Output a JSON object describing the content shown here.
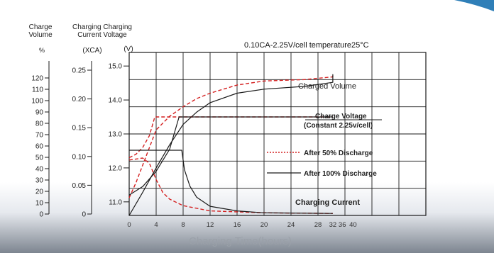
{
  "header": {
    "charge_volume": "Charge\nVolume",
    "charging_current_voltage": "Charging Charging\nCurrent Voltage",
    "unit_percent": "%",
    "unit_xca": "(XCA)",
    "unit_v": "(V)"
  },
  "chart_data": {
    "type": "line",
    "title": "0.10CA-2.25V/cell temperature25°C",
    "xlabel": "Charging Time(hours)",
    "x_ticks": [
      "0",
      "4",
      "8",
      "12",
      "16",
      "20",
      "24",
      "28",
      "32",
      "36",
      "40"
    ],
    "axes": {
      "volume_percent": {
        "ticks": [
          0,
          10,
          20,
          30,
          40,
          50,
          60,
          70,
          80,
          90,
          100,
          110,
          120
        ]
      },
      "current_xca": {
        "ticks": [
          "0",
          "0.05",
          "0.10",
          "0.15",
          "0.20",
          "0.25"
        ]
      },
      "voltage_v": {
        "ticks": [
          "11.0",
          "12.0",
          "13.0",
          "14.0",
          "15.0"
        ],
        "range": [
          10.6,
          15.4
        ]
      }
    },
    "grid": true,
    "annotations": {
      "charged_volume": "Charged Volume",
      "charge_voltage": "Charge Voltage",
      "charge_voltage_sub": "(Constant 2.25v/cell)",
      "charging_current": "Charging Current"
    },
    "legend": [
      {
        "label": "After 50% Discharge",
        "style": "dotted",
        "color": "#d42020"
      },
      {
        "label": "After 100% Discharge",
        "style": "solid",
        "color": "#1a1a1a"
      }
    ],
    "series": [
      {
        "key": "vol50",
        "color": "#d42020",
        "dash": true,
        "points": [
          [
            0,
            13
          ],
          [
            1,
            24
          ],
          [
            2,
            37
          ],
          [
            3,
            50
          ],
          [
            4,
            63
          ],
          [
            6,
            73
          ],
          [
            8,
            80
          ],
          [
            10,
            86
          ],
          [
            12,
            90
          ],
          [
            16,
            96
          ],
          [
            20,
            99
          ],
          [
            26,
            100
          ],
          [
            34,
            102
          ],
          [
            40,
            103
          ]
        ]
      },
      {
        "key": "vol100",
        "color": "#1a1a1a",
        "dash": false,
        "points": [
          [
            0,
            0
          ],
          [
            2,
            17
          ],
          [
            4,
            35
          ],
          [
            6,
            52
          ],
          [
            8,
            67
          ],
          [
            10,
            76
          ],
          [
            12,
            83
          ],
          [
            16,
            90
          ],
          [
            20,
            93
          ],
          [
            26,
            95
          ],
          [
            34,
            98
          ],
          [
            40,
            104
          ]
        ]
      },
      {
        "key": "volt50",
        "color": "#d42020",
        "dash": true,
        "points": [
          [
            0,
            12.3
          ],
          [
            1,
            12.4
          ],
          [
            2,
            12.6
          ],
          [
            3,
            12.95
          ],
          [
            3.8,
            13.5
          ],
          [
            40,
            13.5
          ]
        ]
      },
      {
        "key": "volt100",
        "color": "#1a1a1a",
        "dash": false,
        "points": [
          [
            0,
            11.2
          ],
          [
            2,
            11.45
          ],
          [
            4,
            11.9
          ],
          [
            6,
            12.55
          ],
          [
            7.4,
            13.5
          ],
          [
            40,
            13.5
          ]
        ]
      },
      {
        "key": "cur50",
        "color": "#d42020",
        "dash": true,
        "points": [
          [
            0,
            0.085
          ],
          [
            2,
            0.088
          ],
          [
            3,
            0.08
          ],
          [
            4,
            0.055
          ],
          [
            5,
            0.035
          ],
          [
            6,
            0.025
          ],
          [
            8,
            0.015
          ],
          [
            12,
            0.007
          ],
          [
            20,
            0.004
          ],
          [
            40,
            0.003
          ]
        ]
      },
      {
        "key": "cur100",
        "color": "#1a1a1a",
        "dash": false,
        "points": [
          [
            0,
            0.1
          ],
          [
            7.8,
            0.1
          ],
          [
            8.2,
            0.07
          ],
          [
            9,
            0.045
          ],
          [
            10,
            0.028
          ],
          [
            12,
            0.014
          ],
          [
            16,
            0.007
          ],
          [
            20,
            0.004
          ],
          [
            40,
            0.003
          ]
        ]
      }
    ]
  }
}
